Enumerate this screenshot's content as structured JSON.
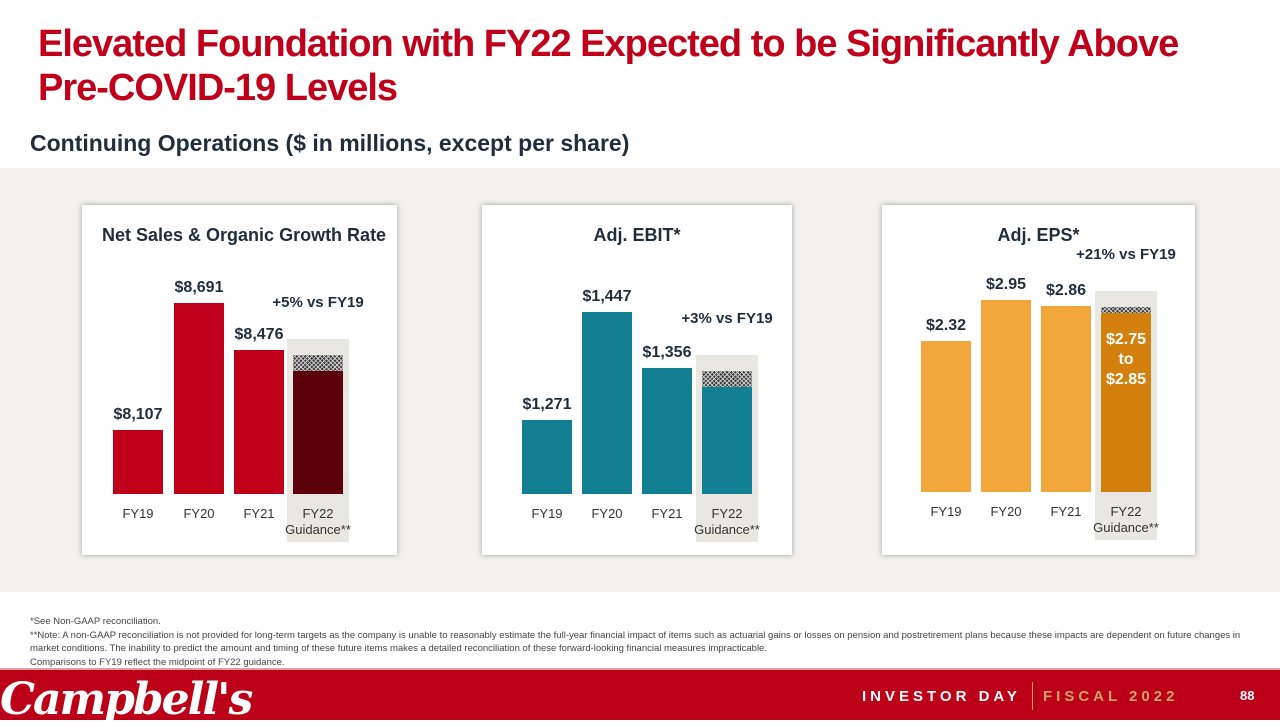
{
  "title": "Elevated Foundation with FY22 Expected to be Significantly Above Pre-COVID-19 Levels",
  "subtitle": "Continuing Operations ($ in millions, except per share)",
  "chart_data": [
    {
      "type": "bar",
      "title": "Net Sales & Organic Growth Rate",
      "categories": [
        "FY19",
        "FY20",
        "FY21",
        "FY22"
      ],
      "guidance_suffix": "Guidance**",
      "values": [
        8107,
        8691,
        8476,
        null
      ],
      "labels": [
        "$8,107",
        "$8,691",
        "$8,476"
      ],
      "guidance_range": [
        8380,
        8450
      ],
      "annotation": "+5% vs FY19",
      "color": "#c0001a",
      "guidance_color": "#5c000c"
    },
    {
      "type": "bar",
      "title": "Adj. EBIT*",
      "categories": [
        "FY19",
        "FY20",
        "FY21",
        "FY22"
      ],
      "guidance_suffix": "Guidance**",
      "values": [
        1271,
        1447,
        1356,
        null
      ],
      "labels": [
        "$1,271",
        "$1,447",
        "$1,356"
      ],
      "guidance_range": [
        1324,
        1350
      ],
      "annotation": "+3% vs FY19",
      "color": "#137f93",
      "guidance_color": "#137f93"
    },
    {
      "type": "bar",
      "title": "Adj. EPS*",
      "categories": [
        "FY19",
        "FY20",
        "FY21",
        "FY22"
      ],
      "guidance_suffix": "Guidance**",
      "values": [
        2.32,
        2.95,
        2.86,
        null
      ],
      "labels": [
        "$2.32",
        "$2.95",
        "$2.86"
      ],
      "guidance_range": [
        2.75,
        2.85
      ],
      "guidance_label": [
        "$2.75",
        "to",
        "$2.85"
      ],
      "annotation": "+21% vs FY19",
      "color": "#f2a73a",
      "guidance_color": "#d4800f"
    }
  ],
  "footnotes": [
    "*See Non-GAAP reconciliation.",
    "**Note: A non-GAAP reconciliation is not provided for long-term targets as the company is unable to reasonably estimate the full-year financial impact of items such as actuarial gains or losses on pension and postretirement plans because these impacts are dependent on future changes in market conditions. The inability to predict the amount and timing of these future items makes a detailed reconciliation of these forward-looking financial measures impracticable.",
    "Comparisons to FY19 reflect the midpoint of FY22 guidance."
  ],
  "footer": {
    "logo": "Campbell's",
    "event": "INVESTOR DAY",
    "fiscal": "FISCAL 2022",
    "page": "88"
  }
}
